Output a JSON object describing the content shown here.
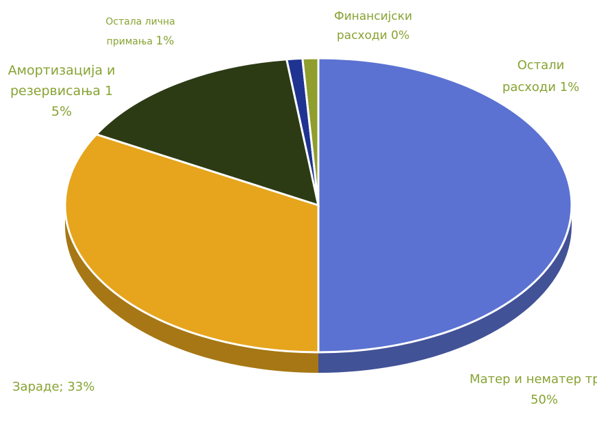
{
  "chart_data": {
    "type": "pie",
    "categories": [
      "Матер и нематер трош",
      "Зараде;",
      "Амортизација и резервисања",
      "Остала лична примања",
      "Финансијски расходи",
      "Остали расходи"
    ],
    "values": [
      50,
      33,
      15,
      1,
      0,
      1
    ],
    "value_labels": [
      "50%",
      "33%",
      "15%",
      "1%",
      "0%",
      "1%"
    ],
    "colors": [
      "#5b72d2",
      "#e6a51c",
      "#2c3b14",
      "#1f3391",
      "#c8c43a",
      "#8f9e2c"
    ]
  }
}
